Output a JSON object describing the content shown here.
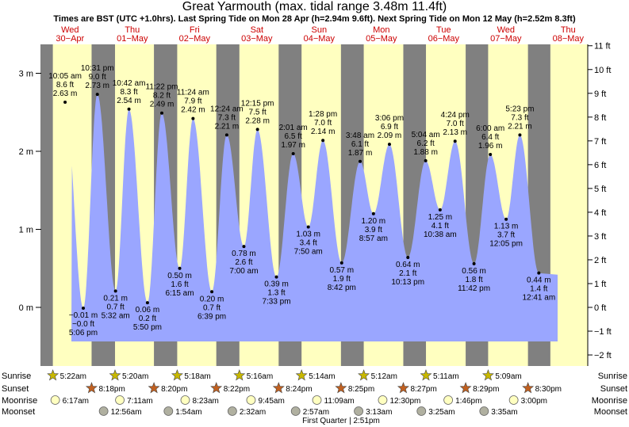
{
  "header": {
    "title": "Great Yarmouth (max. tidal range 3.48m 11.4ft)",
    "subtitle": "Times are BST (UTC +1.0hrs). Last Spring Tide on Mon 28 Apr (h=2.94m 9.6ft). Next Spring Tide on Mon 12 May (h=2.52m 8.3ft)"
  },
  "colors": {
    "night": "#808080",
    "day": "#ffffc0",
    "water": "#9aa6ff",
    "sun": "#c8b800",
    "sunset": "#c06020",
    "moon": "#ffffc0",
    "moonset": "#b0b0a0"
  },
  "days": [
    {
      "dow": "Wed",
      "date": "30-Apr"
    },
    {
      "dow": "Thu",
      "date": "01-May"
    },
    {
      "dow": "Fri",
      "date": "02-May"
    },
    {
      "dow": "Sat",
      "date": "03-May"
    },
    {
      "dow": "Sun",
      "date": "04-May"
    },
    {
      "dow": "Mon",
      "date": "05-May"
    },
    {
      "dow": "Tue",
      "date": "06-May"
    },
    {
      "dow": "Wed",
      "date": "07-May"
    },
    {
      "dow": "Thu",
      "date": "08-May"
    }
  ],
  "chart_data": {
    "type": "area",
    "title": "Great Yarmouth (max. tidal range 3.48m 11.4ft)",
    "x_unit": "date/time (BST)",
    "y_left_label": "m",
    "y_right_label": "ft",
    "left_ticks": [
      "3 m",
      "2 m",
      "1 m",
      "0 m"
    ],
    "right_ticks": [
      "11 ft",
      "10 ft",
      "9 ft",
      "8 ft",
      "7 ft",
      "6 ft",
      "5 ft",
      "4 ft",
      "3 ft",
      "2 ft",
      "1 ft",
      "0 ft",
      "-1 ft",
      "-2 ft"
    ],
    "tides": [
      {
        "day": 0,
        "time": "10:05 am",
        "m": 2.63,
        "ft": "8.6 ft",
        "type": "high",
        "label_m": "2.63 m"
      },
      {
        "day": 0,
        "time": "5:06 pm",
        "m": -0.01,
        "ft": "-0.0 ft",
        "type": "low",
        "label_m": "-0.01 m"
      },
      {
        "day": 0,
        "time": "10:31 pm",
        "m": 2.73,
        "ft": "9.0 ft",
        "type": "high",
        "label_m": "2.73 m"
      },
      {
        "day": 1,
        "time": "5:32 am",
        "m": 0.21,
        "ft": "0.7 ft",
        "type": "low",
        "label_m": "0.21 m"
      },
      {
        "day": 1,
        "time": "10:42 am",
        "m": 2.54,
        "ft": "8.3 ft",
        "type": "high",
        "label_m": "2.54 m"
      },
      {
        "day": 1,
        "time": "5:50 pm",
        "m": 0.06,
        "ft": "0.2 ft",
        "type": "low",
        "label_m": "0.06 m"
      },
      {
        "day": 1,
        "time": "11:22 pm",
        "m": 2.49,
        "ft": "8.2 ft",
        "type": "high",
        "label_m": "2.49 m"
      },
      {
        "day": 2,
        "time": "6:15 am",
        "m": 0.5,
        "ft": "1.6 ft",
        "type": "low",
        "label_m": "0.50 m"
      },
      {
        "day": 2,
        "time": "11:24 am",
        "m": 2.42,
        "ft": "7.9 ft",
        "type": "high",
        "label_m": "2.42 m"
      },
      {
        "day": 2,
        "time": "6:39 pm",
        "m": 0.2,
        "ft": "0.7 ft",
        "type": "low",
        "label_m": "0.20 m"
      },
      {
        "day": 3,
        "time": "12:24 am",
        "m": 2.21,
        "ft": "7.3 ft",
        "type": "high",
        "label_m": "2.21 m"
      },
      {
        "day": 3,
        "time": "7:00 am",
        "m": 0.78,
        "ft": "2.6 ft",
        "type": "low",
        "label_m": "0.78 m"
      },
      {
        "day": 3,
        "time": "12:15 pm",
        "m": 2.28,
        "ft": "7.5 ft",
        "type": "high",
        "label_m": "2.28 m"
      },
      {
        "day": 3,
        "time": "7:33 pm",
        "m": 0.39,
        "ft": "1.3 ft",
        "type": "low",
        "label_m": "0.39 m"
      },
      {
        "day": 4,
        "time": "2:01 am",
        "m": 1.97,
        "ft": "6.5 ft",
        "type": "high",
        "label_m": "1.97 m"
      },
      {
        "day": 4,
        "time": "7:50 am",
        "m": 1.03,
        "ft": "3.4 ft",
        "type": "low",
        "label_m": "1.03 m"
      },
      {
        "day": 4,
        "time": "1:28 pm",
        "m": 2.14,
        "ft": "7.0 ft",
        "type": "high",
        "label_m": "2.14 m"
      },
      {
        "day": 4,
        "time": "8:42 pm",
        "m": 0.57,
        "ft": "1.9 ft",
        "type": "low",
        "label_m": "0.57 m"
      },
      {
        "day": 5,
        "time": "3:48 am",
        "m": 1.87,
        "ft": "6.1 ft",
        "type": "high",
        "label_m": "1.87 m"
      },
      {
        "day": 5,
        "time": "8:57 am",
        "m": 1.2,
        "ft": "3.9 ft",
        "type": "low",
        "label_m": "1.20 m"
      },
      {
        "day": 5,
        "time": "3:06 pm",
        "m": 2.09,
        "ft": "6.9 ft",
        "type": "high",
        "label_m": "2.09 m"
      },
      {
        "day": 5,
        "time": "10:13 pm",
        "m": 0.64,
        "ft": "2.1 ft",
        "type": "low",
        "label_m": "0.64 m"
      },
      {
        "day": 6,
        "time": "5:04 am",
        "m": 1.88,
        "ft": "6.2 ft",
        "type": "high",
        "label_m": "1.88 m"
      },
      {
        "day": 6,
        "time": "10:38 am",
        "m": 1.25,
        "ft": "4.1 ft",
        "type": "low",
        "label_m": "1.25 m"
      },
      {
        "day": 6,
        "time": "4:24 pm",
        "m": 2.13,
        "ft": "7.0 ft",
        "type": "high",
        "label_m": "2.13 m"
      },
      {
        "day": 6,
        "time": "11:42 pm",
        "m": 0.56,
        "ft": "1.8 ft",
        "type": "low",
        "label_m": "0.56 m"
      },
      {
        "day": 7,
        "time": "6:00 am",
        "m": 1.96,
        "ft": "6.4 ft",
        "type": "high",
        "label_m": "1.96 m"
      },
      {
        "day": 7,
        "time": "12:05 pm",
        "m": 1.13,
        "ft": "3.7 ft",
        "type": "low",
        "label_m": "1.13 m"
      },
      {
        "day": 7,
        "time": "5:23 pm",
        "m": 2.21,
        "ft": "7.3 ft",
        "type": "high",
        "label_m": "2.21 m"
      },
      {
        "day": 8,
        "time": "12:41 am",
        "m": 0.44,
        "ft": "1.4 ft",
        "type": "low",
        "label_m": "0.44 m"
      }
    ]
  },
  "sun_moon": {
    "row_labels": [
      "Sunrise",
      "Sunset",
      "Moonrise",
      "Moonset"
    ],
    "sunrise": [
      "5:22am",
      "5:20am",
      "5:18am",
      "5:16am",
      "5:14am",
      "5:12am",
      "5:11am",
      "5:09am"
    ],
    "sunset": [
      "8:18pm",
      "8:20pm",
      "8:22pm",
      "8:24pm",
      "8:25pm",
      "8:27pm",
      "8:29pm",
      "8:30pm"
    ],
    "moonrise": [
      "6:17am",
      "7:11am",
      "8:23am",
      "9:45am",
      "11:09am",
      "12:30pm",
      "1:46pm",
      "3:00pm"
    ],
    "moonset": [
      "12:56am",
      "1:54am",
      "2:32am",
      "2:57am",
      "3:13am",
      "3:25am",
      "3:35am"
    ],
    "moon_phase": "First Quarter | 2:51pm"
  }
}
